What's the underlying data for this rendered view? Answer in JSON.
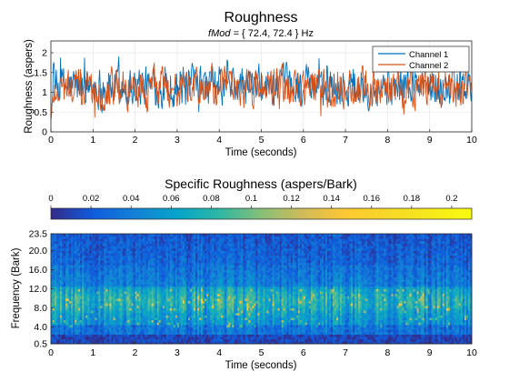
{
  "chart_data": [
    {
      "type": "line",
      "title": "Roughness",
      "subtitle_var": "fMod",
      "subtitle_rest": " = { 72.4, 72.4 } Hz",
      "xlabel": "Time (seconds)",
      "ylabel": "Roughness (aspers)",
      "xlim": [
        0,
        10
      ],
      "ylim": [
        0,
        2.3
      ],
      "xticks": [
        "0",
        "1",
        "2",
        "3",
        "4",
        "5",
        "6",
        "7",
        "8",
        "9",
        "10"
      ],
      "yticks": [
        "0",
        "0.5",
        "1",
        "1.5",
        "2"
      ],
      "grid": true,
      "legend": "top-right",
      "series": [
        {
          "name": "Channel 1",
          "color": "#0072BD",
          "mean": 1.15,
          "min": 0.3,
          "max": 2.3
        },
        {
          "name": "Channel 2",
          "color": "#D95319",
          "mean": 1.12,
          "min": 0.3,
          "max": 2.05
        }
      ]
    },
    {
      "type": "heatmap",
      "title": "Specific Roughness (aspers/Bark)",
      "xlabel": "Time (seconds)",
      "ylabel": "Frequency (Bark)",
      "xlim": [
        0,
        10
      ],
      "ylim": [
        0.5,
        23.5
      ],
      "xticks": [
        "0",
        "1",
        "2",
        "3",
        "4",
        "5",
        "6",
        "7",
        "8",
        "9",
        "10"
      ],
      "yticks": [
        "0.5",
        "4.0",
        "8.0",
        "12.0",
        "16.0",
        "20.0",
        "23.5"
      ],
      "colorbar": {
        "placement": "top",
        "range": [
          0,
          0.21
        ],
        "ticks": [
          "0",
          "0.02",
          "0.04",
          "0.06",
          "0.08",
          "0.1",
          "0.12",
          "0.14",
          "0.16",
          "0.18",
          "0.2"
        ],
        "colormap": "parula"
      }
    }
  ]
}
